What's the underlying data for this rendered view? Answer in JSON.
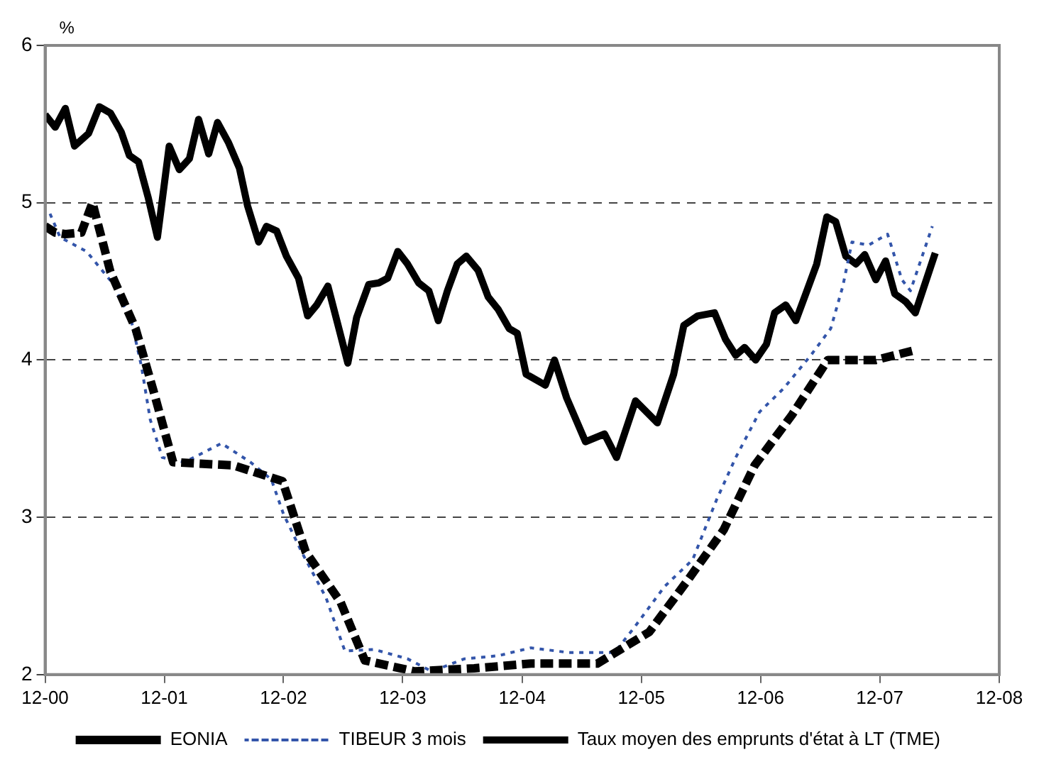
{
  "chart_data": {
    "type": "line",
    "ylabel": "%",
    "xlim": [
      "2000-12",
      "2008-12"
    ],
    "ylim": [
      2,
      6
    ],
    "yticks": [
      2,
      3,
      4,
      5,
      6
    ],
    "xticks": [
      {
        "value": "2000-12",
        "label": "12-00"
      },
      {
        "value": "2001-12",
        "label": "12-01"
      },
      {
        "value": "2002-12",
        "label": "12-02"
      },
      {
        "value": "2003-12",
        "label": "12-03"
      },
      {
        "value": "2004-12",
        "label": "12-04"
      },
      {
        "value": "2005-12",
        "label": "12-05"
      },
      {
        "value": "2006-12",
        "label": "12-06"
      },
      {
        "value": "2007-12",
        "label": "12-07"
      },
      {
        "value": "2008-12",
        "label": "12-08"
      }
    ],
    "grid": "y",
    "legend": "bottom",
    "marker": "none",
    "series": [
      {
        "name": "EONIA",
        "color": "#000000",
        "line_style": "dashed",
        "x": [
          "2000-12-01",
          "2001-01-01",
          "2001-02-01",
          "2001-03-22",
          "2001-04-25",
          "2001-06-19",
          "2001-09-04",
          "2001-10-28",
          "2001-12-28",
          "2002-07-01",
          "2002-11-28",
          "2003-02-07",
          "2003-05-25",
          "2003-08-07",
          "2004-01-07",
          "2004-07-07",
          "2004-12-28",
          "2005-07-19",
          "2005-12-25",
          "2006-04-22",
          "2006-08-10",
          "2006-11-13",
          "2007-03-07",
          "2007-06-25",
          "2007-11-19",
          "2008-03-13"
        ],
        "values": [
          4.85,
          4.81,
          4.8,
          4.81,
          5.0,
          4.56,
          4.2,
          3.81,
          3.35,
          3.33,
          3.23,
          2.78,
          2.46,
          2.09,
          2.02,
          2.04,
          2.07,
          2.07,
          2.27,
          2.6,
          2.92,
          3.33,
          3.65,
          4.0,
          4.0,
          4.06
        ]
      },
      {
        "name": "TIBEUR 3 mois",
        "color": "#3355aa",
        "line_style": "dotted",
        "x": [
          "2000-12-16",
          "2001-01-16",
          "2001-04-07",
          "2001-06-25",
          "2001-08-22",
          "2001-09-22",
          "2001-10-19",
          "2001-11-25",
          "2002-02-01",
          "2002-05-25",
          "2002-08-22",
          "2002-10-25",
          "2002-12-01",
          "2003-01-28",
          "2003-04-10",
          "2003-06-07",
          "2003-09-04",
          "2003-12-16",
          "2004-02-28",
          "2004-06-07",
          "2004-09-19",
          "2004-12-28",
          "2005-04-22",
          "2005-09-10",
          "2005-11-13",
          "2006-02-10",
          "2006-05-07",
          "2006-07-19",
          "2006-09-16",
          "2006-11-28",
          "2007-02-10",
          "2007-05-04",
          "2007-07-04",
          "2007-08-10",
          "2007-09-07",
          "2007-10-28",
          "2007-12-25",
          "2008-02-07",
          "2008-03-04",
          "2008-05-10"
        ],
        "values": [
          4.93,
          4.78,
          4.69,
          4.49,
          4.25,
          3.96,
          3.62,
          3.38,
          3.35,
          3.47,
          3.35,
          3.24,
          3.02,
          2.77,
          2.49,
          2.15,
          2.16,
          2.1,
          2.02,
          2.1,
          2.12,
          2.17,
          2.14,
          2.14,
          2.31,
          2.56,
          2.73,
          3.11,
          3.38,
          3.67,
          3.82,
          4.03,
          4.2,
          4.47,
          4.75,
          4.73,
          4.8,
          4.51,
          4.44,
          4.85
        ]
      },
      {
        "name": "Taux moyen des emprunts d'état à LT (TME)",
        "color": "#000000",
        "line_style": "solid",
        "x": [
          "2000-12-01",
          "2001-01-01",
          "2001-02-01",
          "2001-03-01",
          "2001-04-13",
          "2001-05-16",
          "2001-06-19",
          "2001-07-22",
          "2001-08-16",
          "2001-09-13",
          "2001-10-13",
          "2001-11-10",
          "2001-12-16",
          "2002-01-16",
          "2002-02-16",
          "2002-03-16",
          "2002-04-16",
          "2002-05-13",
          "2002-06-16",
          "2002-07-19",
          "2002-08-13",
          "2002-09-16",
          "2002-10-10",
          "2002-11-10",
          "2002-12-10",
          "2003-01-16",
          "2003-02-13",
          "2003-03-13",
          "2003-04-16",
          "2003-05-16",
          "2003-06-16",
          "2003-07-13",
          "2003-08-19",
          "2003-09-19",
          "2003-10-16",
          "2003-11-16",
          "2003-12-16",
          "2004-01-19",
          "2004-02-19",
          "2004-03-19",
          "2004-04-16",
          "2004-05-16",
          "2004-06-13",
          "2004-07-19",
          "2004-08-19",
          "2004-09-19",
          "2004-10-22",
          "2004-11-16",
          "2004-12-13",
          "2005-02-10",
          "2005-03-10",
          "2005-04-16",
          "2005-06-13",
          "2005-08-10",
          "2005-09-16",
          "2005-11-13",
          "2006-01-19",
          "2006-03-10",
          "2006-04-10",
          "2006-05-22",
          "2006-07-13",
          "2006-08-16",
          "2006-09-16",
          "2006-10-13",
          "2006-11-16",
          "2006-12-19",
          "2007-01-13",
          "2007-02-16",
          "2007-03-19",
          "2007-04-22",
          "2007-05-22",
          "2007-06-22",
          "2007-07-19",
          "2007-08-19",
          "2007-09-19",
          "2007-10-16",
          "2007-11-19",
          "2007-12-19",
          "2008-01-16",
          "2008-02-19",
          "2008-03-19",
          "2008-05-19"
        ],
        "values": [
          5.56,
          5.48,
          5.6,
          5.36,
          5.44,
          5.61,
          5.57,
          5.45,
          5.3,
          5.26,
          5.03,
          4.78,
          5.36,
          5.21,
          5.28,
          5.53,
          5.31,
          5.51,
          5.38,
          5.22,
          4.98,
          4.75,
          4.85,
          4.82,
          4.66,
          4.52,
          4.28,
          4.35,
          4.47,
          4.23,
          3.98,
          4.27,
          4.48,
          4.49,
          4.52,
          4.69,
          4.61,
          4.49,
          4.44,
          4.25,
          4.44,
          4.61,
          4.66,
          4.57,
          4.4,
          4.32,
          4.2,
          4.17,
          3.91,
          3.84,
          4.0,
          3.76,
          3.48,
          3.53,
          3.38,
          3.74,
          3.6,
          3.91,
          4.22,
          4.28,
          4.3,
          4.13,
          4.03,
          4.08,
          4.0,
          4.1,
          4.3,
          4.35,
          4.25,
          4.44,
          4.61,
          4.91,
          4.88,
          4.66,
          4.61,
          4.67,
          4.51,
          4.63,
          4.42,
          4.37,
          4.3,
          4.68
        ]
      }
    ]
  }
}
